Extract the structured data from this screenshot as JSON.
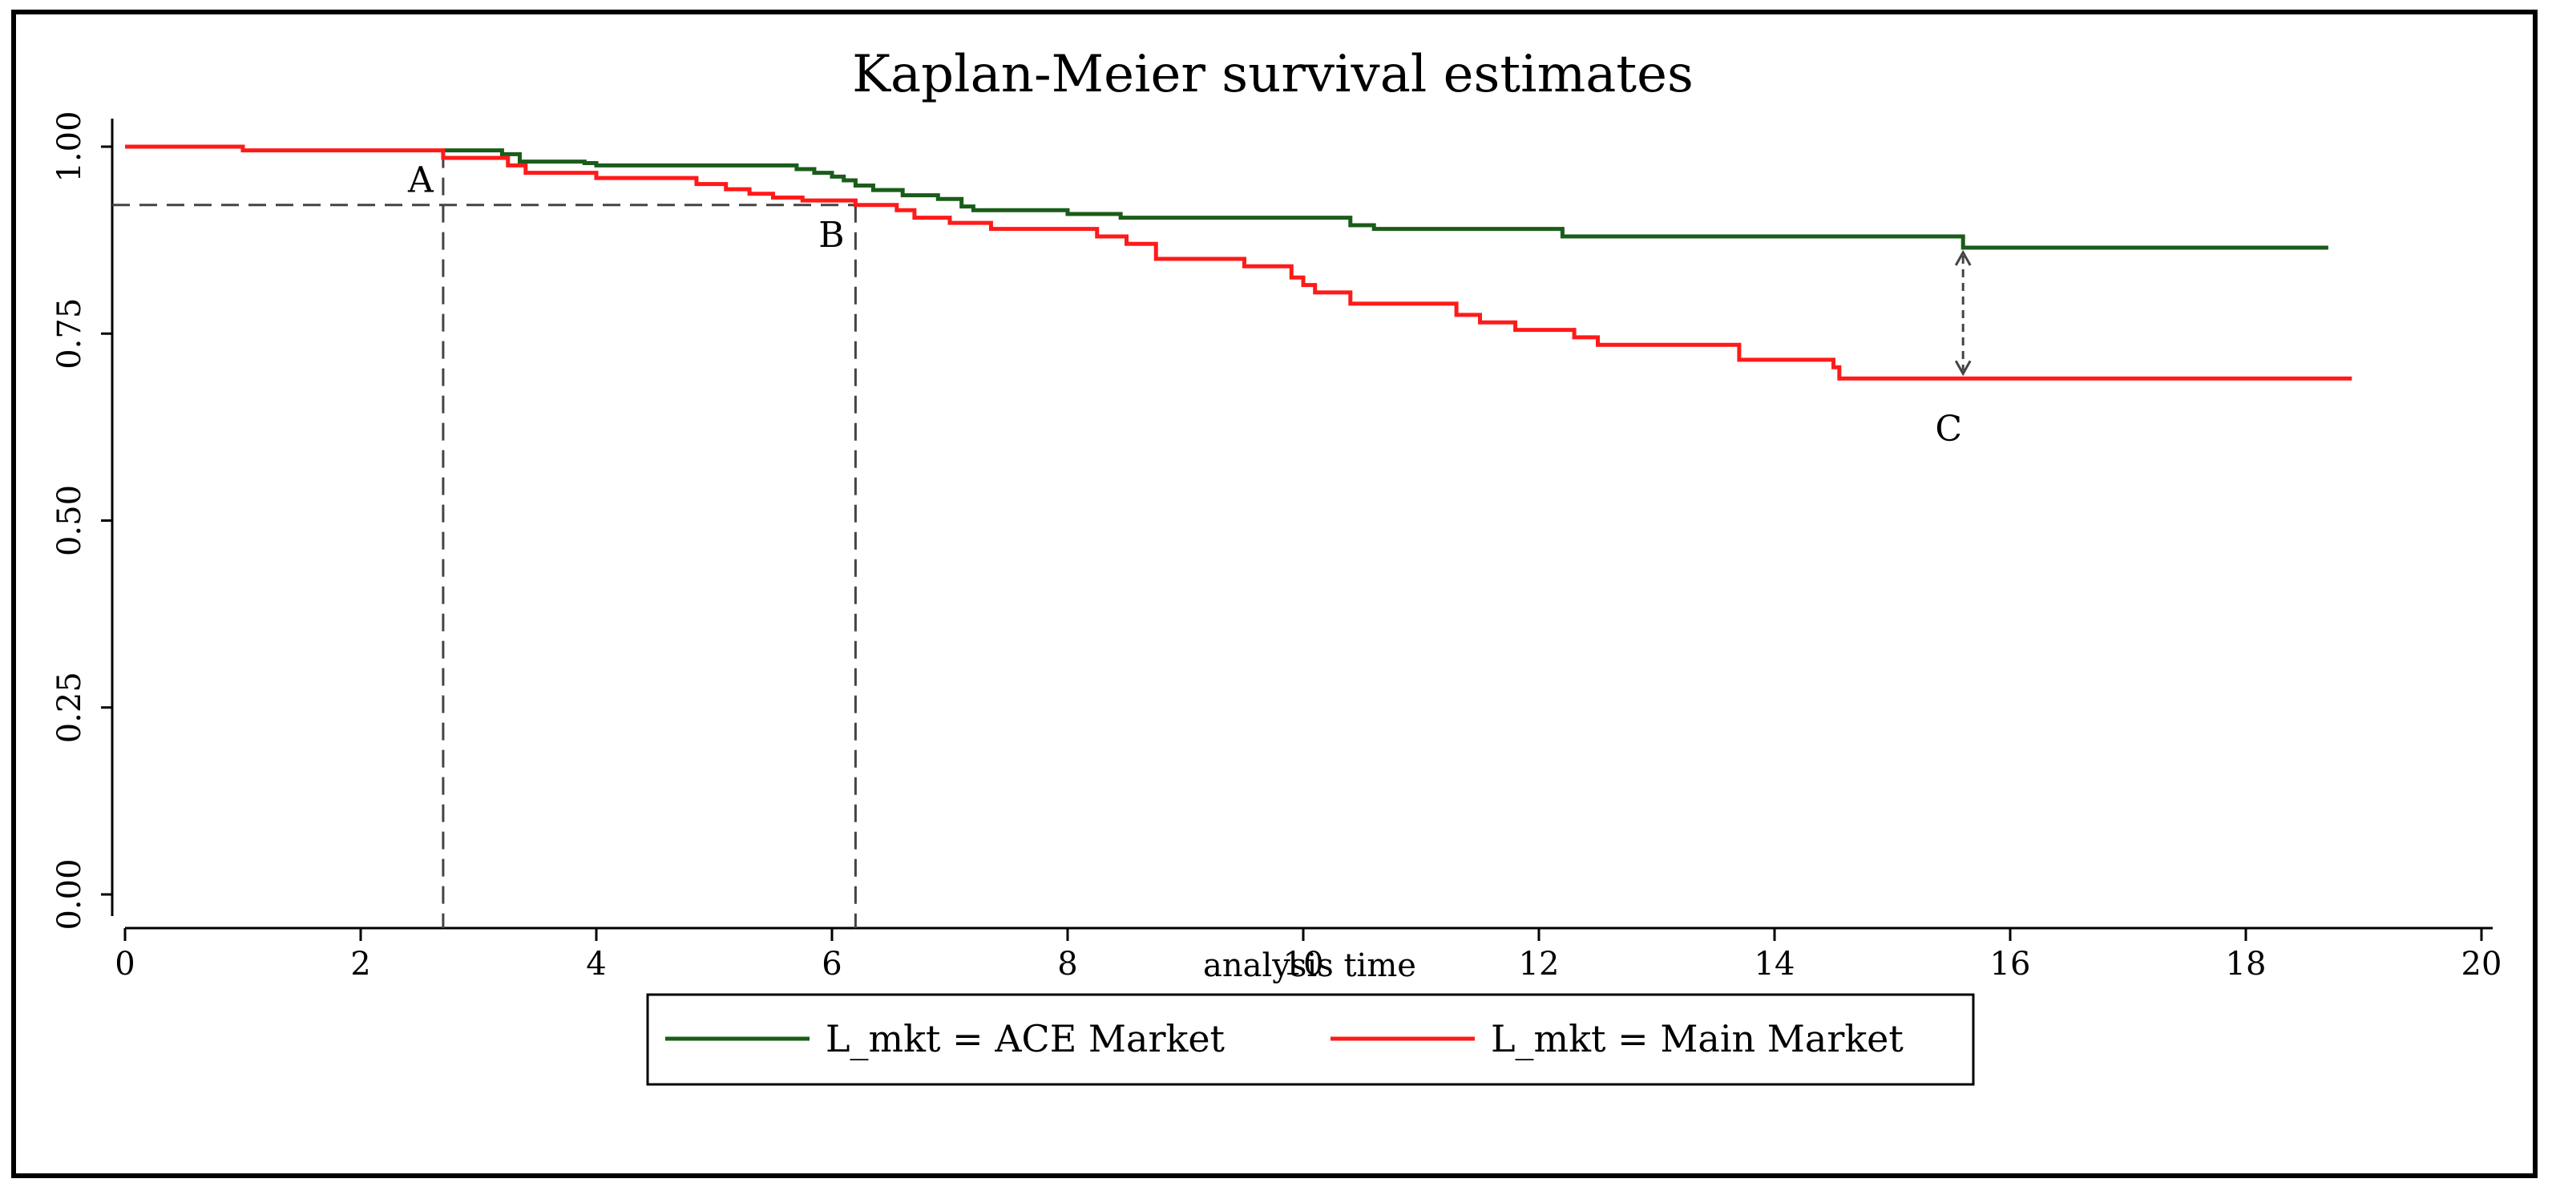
{
  "chart_data": {
    "type": "line",
    "title": "Kaplan-Meier survival estimates",
    "xlabel": "analysis time",
    "ylabel": "",
    "xlim": [
      0,
      20
    ],
    "ylim": [
      0,
      1
    ],
    "x_ticks": [
      0,
      2,
      4,
      6,
      8,
      10,
      12,
      14,
      16,
      18,
      20
    ],
    "x_tick_labels": [
      "0",
      "2",
      "4",
      "6",
      "8",
      "10",
      "12",
      "14",
      "16",
      "18",
      "20"
    ],
    "y_ticks": [
      0,
      0.25,
      0.5,
      0.75,
      1.0
    ],
    "y_tick_labels": [
      "0.00",
      "0.25",
      "0.50",
      "0.75",
      "1.00"
    ],
    "legend_position": "bottom",
    "series": [
      {
        "name": "L_mkt = ACE Market",
        "color": "#1a5c1a",
        "step": true,
        "x": [
          2.7,
          3.2,
          3.35,
          3.9,
          4.0,
          5.7,
          5.85,
          6.0,
          6.1,
          6.2,
          6.35,
          6.6,
          6.9,
          7.1,
          7.2,
          8.0,
          8.45,
          10.4,
          10.6,
          11.0,
          12.2,
          15.6,
          18.7
        ],
        "values": [
          0.995,
          0.99,
          0.98,
          0.978,
          0.975,
          0.97,
          0.965,
          0.96,
          0.955,
          0.948,
          0.942,
          0.935,
          0.93,
          0.92,
          0.915,
          0.91,
          0.905,
          0.895,
          0.89,
          0.89,
          0.88,
          0.865,
          0.865
        ]
      },
      {
        "name": "L_mkt = Main Market",
        "color": "#ff1a1a",
        "step": true,
        "x": [
          0,
          1.0,
          2.7,
          3.25,
          3.4,
          4.0,
          4.85,
          5.1,
          5.3,
          5.5,
          5.75,
          6.2,
          6.55,
          6.7,
          7.0,
          7.35,
          8.25,
          8.5,
          8.75,
          9.5,
          9.9,
          10.0,
          10.1,
          10.4,
          11.3,
          11.5,
          11.8,
          12.3,
          12.5,
          13.7,
          14.5,
          14.55,
          18.9
        ],
        "values": [
          1.0,
          0.995,
          0.985,
          0.975,
          0.965,
          0.958,
          0.95,
          0.943,
          0.937,
          0.932,
          0.928,
          0.922,
          0.915,
          0.905,
          0.898,
          0.89,
          0.88,
          0.87,
          0.85,
          0.84,
          0.825,
          0.815,
          0.805,
          0.79,
          0.775,
          0.765,
          0.755,
          0.745,
          0.735,
          0.715,
          0.705,
          0.69,
          0.69
        ]
      }
    ],
    "annotations": [
      {
        "label": "A",
        "x": 2.7,
        "y": 0.995
      },
      {
        "label": "B",
        "x": 6.2,
        "y": 0.922
      },
      {
        "label": "C",
        "x": 15.6,
        "y": 0.69
      }
    ],
    "guides": {
      "a_x": 2.7,
      "b_x": 6.2,
      "h_y": 0.922,
      "gap_x": 15.6,
      "gap_top": 0.865,
      "gap_bottom": 0.69
    }
  }
}
